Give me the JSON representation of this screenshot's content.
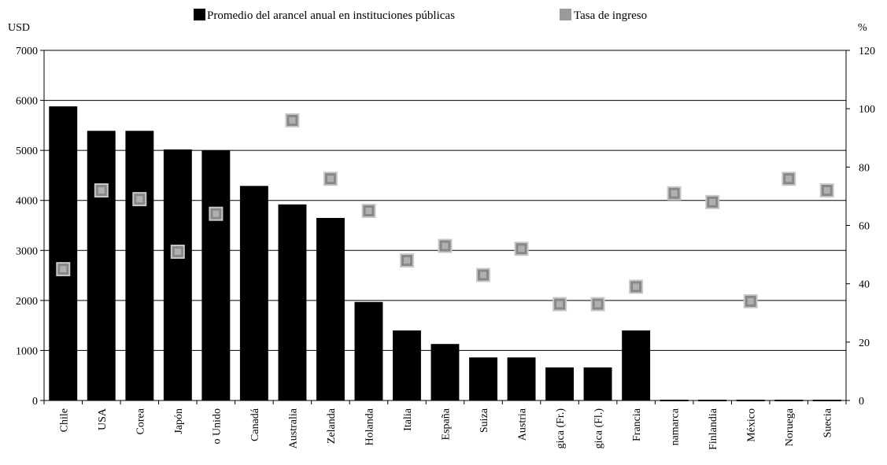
{
  "chart_data": {
    "type": "bar",
    "legend": {
      "placement": "top",
      "entries": [
        {
          "name": "Promedio del arancel anual en instituciones públicas",
          "marker": "bar",
          "color": "#000000"
        },
        {
          "name": "Tasa de ingreso",
          "marker": "square",
          "color": "#9a9a9a"
        }
      ]
    },
    "left_axis": {
      "unit_label": "USD",
      "ylim": [
        0,
        7000
      ],
      "ticks": [
        "0",
        "1000",
        "2000",
        "3000",
        "4000",
        "5000",
        "6000",
        "7000"
      ]
    },
    "right_axis": {
      "unit_label": "%",
      "ylim": [
        0,
        120
      ],
      "ticks": [
        "0",
        "20",
        "40",
        "60",
        "80",
        "100",
        "120"
      ]
    },
    "grid": true,
    "categories": [
      "Chile",
      "USA",
      "Corea",
      "Japón",
      "Reino Unido",
      "Canadá",
      "Australia",
      "Nueva Zelanda",
      "Holanda",
      "Italia",
      "España",
      "Suiza",
      "Austria",
      "Bélgica (Fr.)",
      "Bélgica (Fl.)",
      "Francia",
      "Dinamarca",
      "Finlandia",
      "México",
      "Noruega",
      "Suecia"
    ],
    "category_labels_visible": [
      "Chile",
      "USA",
      "Corea",
      "Japón",
      "o Unido",
      "Canadá",
      "Australia",
      "Zelanda",
      "Holanda",
      "Italia",
      "España",
      "Suiza",
      "Austria",
      "gica (Fr.)",
      "gica (Fl.)",
      "Francia",
      "namarca",
      "Finlandia",
      "México",
      "Noruega",
      "Suecia"
    ],
    "series": [
      {
        "name": "Promedio del arancel anual en instituciones públicas",
        "axis": "left",
        "type": "bar",
        "values": [
          5880,
          5390,
          5390,
          5020,
          5000,
          4290,
          3920,
          3650,
          1970,
          1400,
          1130,
          860,
          860,
          660,
          660,
          1400,
          0,
          0,
          0,
          0,
          0
        ]
      },
      {
        "name": "Tasa de ingreso",
        "axis": "right",
        "type": "scatter",
        "values": [
          45,
          72,
          69,
          51,
          64,
          null,
          96,
          76,
          65,
          48,
          53,
          43,
          52,
          33,
          33,
          39,
          71,
          68,
          34,
          76,
          72
        ]
      }
    ]
  }
}
